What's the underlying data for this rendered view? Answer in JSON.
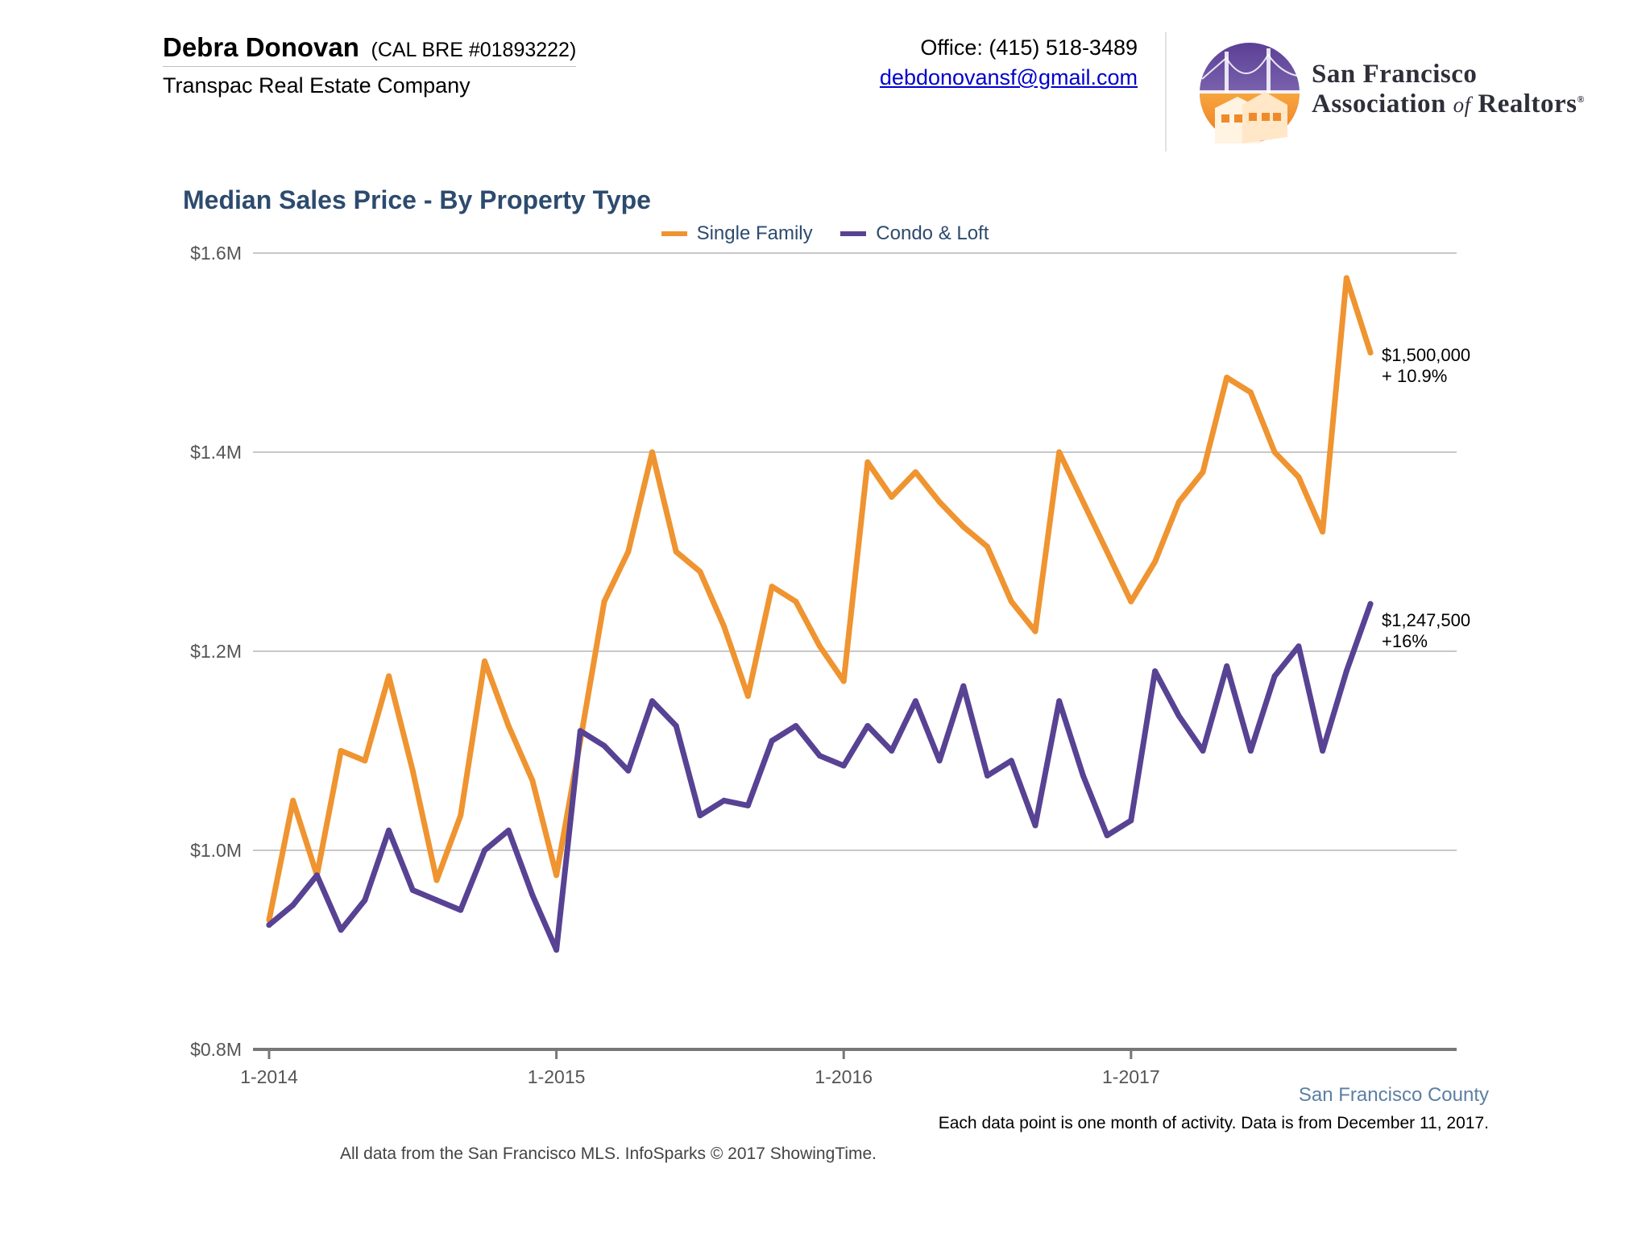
{
  "header": {
    "agent_name": "Debra Donovan",
    "agent_license": "(CAL BRE #01893222)",
    "company": "Transpac Real Estate Company",
    "office_phone": "Office: (415) 518-3489",
    "email": "debdonovansf@gmail.com",
    "logo_line1": "San Francisco",
    "logo_line2_a": "Association",
    "logo_line2_of": "of",
    "logo_line2_b": "Realtors",
    "logo_mark": "®"
  },
  "footer": {
    "county": "San Francisco County",
    "note": "Each data point is one month of activity. Data is from December 11, 2017.",
    "source": "All data from the San Francisco MLS. InfoSparks © 2017 ShowingTime."
  },
  "end_labels": {
    "single_family_value": "$1,500,000",
    "single_family_change": "+ 10.9%",
    "condo_value": "$1,247,500",
    "condo_change": "+16%"
  },
  "chart_data": {
    "type": "line",
    "title": "Median Sales Price - By Property Type",
    "xlabel": "",
    "ylabel": "",
    "ylim": [
      0.8,
      1.6
    ],
    "y_ticks": [
      {
        "value": 0.8,
        "label": "$0.8M"
      },
      {
        "value": 1.0,
        "label": "$1.0M"
      },
      {
        "value": 1.2,
        "label": "$1.2M"
      },
      {
        "value": 1.4,
        "label": "$1.4M"
      },
      {
        "value": 1.6,
        "label": "$1.6M"
      }
    ],
    "x_ticks": [
      "1-2014",
      "1-2015",
      "1-2016",
      "1-2017"
    ],
    "x_start": "1-2014",
    "x_end": "11-2017",
    "grid": true,
    "legend_position": "top-center",
    "series": [
      {
        "name": "Single Family",
        "color": "#ef9430",
        "values": [
          0.93,
          1.05,
          0.975,
          1.1,
          1.09,
          1.175,
          1.08,
          0.97,
          1.035,
          1.19,
          1.125,
          1.07,
          0.975,
          1.11,
          1.25,
          1.3,
          1.4,
          1.3,
          1.28,
          1.225,
          1.155,
          1.265,
          1.25,
          1.205,
          1.17,
          1.39,
          1.355,
          1.38,
          1.35,
          1.325,
          1.305,
          1.25,
          1.22,
          1.4,
          1.35,
          1.3,
          1.25,
          1.29,
          1.35,
          1.38,
          1.475,
          1.46,
          1.4,
          1.375,
          1.32,
          1.575,
          1.5
        ]
      },
      {
        "name": "Condo & Loft",
        "color": "#584293",
        "values": [
          0.925,
          0.945,
          0.975,
          0.92,
          0.95,
          1.02,
          0.96,
          0.95,
          0.94,
          1.0,
          1.02,
          0.955,
          0.9,
          1.12,
          1.105,
          1.08,
          1.15,
          1.125,
          1.035,
          1.05,
          1.045,
          1.11,
          1.125,
          1.095,
          1.085,
          1.125,
          1.1,
          1.15,
          1.09,
          1.165,
          1.075,
          1.09,
          1.025,
          1.15,
          1.075,
          1.015,
          1.03,
          1.18,
          1.135,
          1.1,
          1.185,
          1.1,
          1.175,
          1.205,
          1.1,
          1.18,
          1.2475
        ]
      }
    ]
  }
}
